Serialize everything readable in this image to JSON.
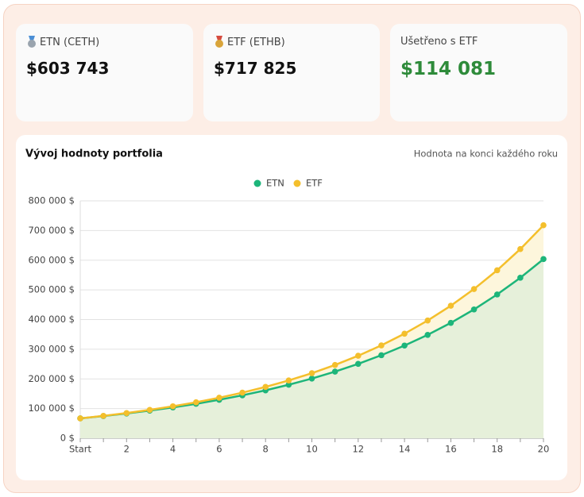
{
  "cards": [
    {
      "label": "ETN (CETH)",
      "value": "$603 743",
      "icon_color": "#9aa4ae"
    },
    {
      "label": "ETF (ETHB)",
      "value": "$717 825",
      "icon_color": "#d9a43a"
    },
    {
      "label": "Ušetřeno s ETF",
      "value": "$114 081",
      "value_color": "#2e8b3a"
    }
  ],
  "chart_data": {
    "type": "line",
    "title": "Vývoj hodnoty portfolia",
    "subtitle": "Hodnota na konci každého roku",
    "categories": [
      "Start",
      null,
      "2",
      null,
      "4",
      null,
      "6",
      null,
      "8",
      null,
      "10",
      null,
      "12",
      null,
      "14",
      null,
      "16",
      null,
      "18",
      null,
      "20"
    ],
    "series": [
      {
        "name": "ETN",
        "color": "#1db57a",
        "area_color": "#e6f0da",
        "values": [
          67000,
          74800,
          83500,
          93200,
          104000,
          116100,
          129600,
          144700,
          161500,
          180300,
          201200,
          224600,
          250700,
          279900,
          312400,
          348400,
          388900,
          434100,
          484600,
          540900,
          603743
        ]
      },
      {
        "name": "ETF",
        "color": "#f4bf2c",
        "area_color": "#fdf6dc",
        "values": [
          67000,
          75400,
          84900,
          95600,
          107700,
          121200,
          136500,
          153700,
          173000,
          194800,
          219300,
          246900,
          278000,
          313000,
          352400,
          396800,
          446700,
          502900,
          566200,
          637500,
          717825
        ]
      }
    ],
    "ylim": [
      0,
      800000
    ],
    "yticks": [
      {
        "value": 0,
        "label": "0 $"
      },
      {
        "value": 100000,
        "label": "100 000 $"
      },
      {
        "value": 200000,
        "label": "200 000 $"
      },
      {
        "value": 300000,
        "label": "300 000 $"
      },
      {
        "value": 400000,
        "label": "400 000 $"
      },
      {
        "value": 500000,
        "label": "500 000 $"
      },
      {
        "value": 600000,
        "label": "600 000 $"
      },
      {
        "value": 700000,
        "label": "700 000 $"
      },
      {
        "value": 800000,
        "label": "800 000 $"
      }
    ],
    "grid": true,
    "legend": "top"
  }
}
